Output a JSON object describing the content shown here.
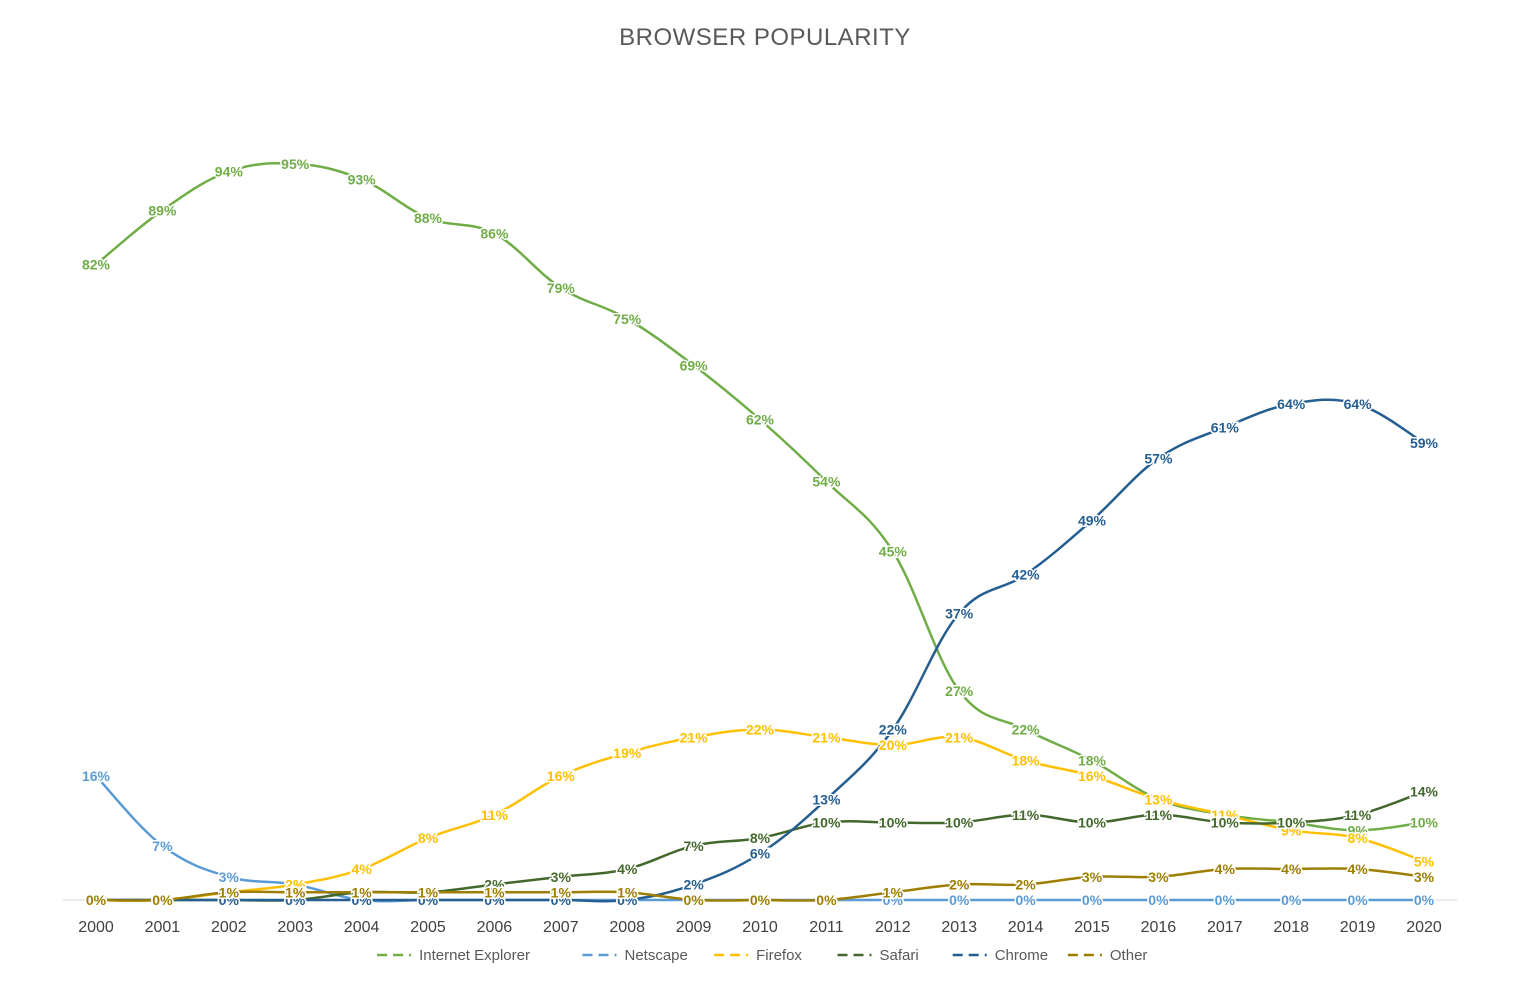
{
  "chart_data": {
    "type": "line",
    "title": "BROWSER POPULARITY",
    "xlabel": "",
    "ylabel": "",
    "ylim": [
      0,
      100
    ],
    "grid": false,
    "legend_position": "bottom",
    "categories": [
      "2000",
      "2001",
      "2002",
      "2003",
      "2004",
      "2005",
      "2006",
      "2007",
      "2008",
      "2009",
      "2010",
      "2011",
      "2012",
      "2013",
      "2014",
      "2015",
      "2016",
      "2017",
      "2018",
      "2019",
      "2020"
    ],
    "series": [
      {
        "name": "Internet Explorer",
        "color": "#70ad47",
        "values": [
          82,
          89,
          94,
          95,
          93,
          88,
          86,
          79,
          75,
          69,
          62,
          54,
          45,
          27,
          22,
          18,
          13,
          11,
          10,
          9,
          10
        ]
      },
      {
        "name": "Netscape",
        "color": "#5b9bd5",
        "values": [
          16,
          7,
          3,
          2,
          0,
          0,
          0,
          0,
          0,
          0,
          0,
          0,
          0,
          0,
          0,
          0,
          0,
          0,
          0,
          0,
          0
        ]
      },
      {
        "name": "Firefox",
        "color": "#ffc000",
        "values": [
          0,
          0,
          1,
          2,
          4,
          8,
          11,
          16,
          19,
          21,
          22,
          21,
          20,
          21,
          18,
          16,
          13,
          11,
          9,
          8,
          5
        ]
      },
      {
        "name": "Safari",
        "color": "#43682b",
        "values": [
          0,
          0,
          0,
          0,
          1,
          1,
          2,
          3,
          4,
          7,
          8,
          10,
          10,
          10,
          11,
          10,
          11,
          10,
          10,
          11,
          14
        ]
      },
      {
        "name": "Chrome",
        "color": "#255e91",
        "values": [
          0,
          0,
          0,
          0,
          0,
          0,
          0,
          0,
          0,
          2,
          6,
          13,
          22,
          37,
          42,
          49,
          57,
          61,
          64,
          64,
          59
        ]
      },
      {
        "name": "Other",
        "color": "#9e7e00",
        "values": [
          0,
          0,
          1,
          1,
          1,
          1,
          1,
          1,
          1,
          0,
          0,
          0,
          1,
          2,
          2,
          3,
          3,
          4,
          4,
          4,
          3
        ]
      }
    ],
    "value_suffix": "%"
  }
}
